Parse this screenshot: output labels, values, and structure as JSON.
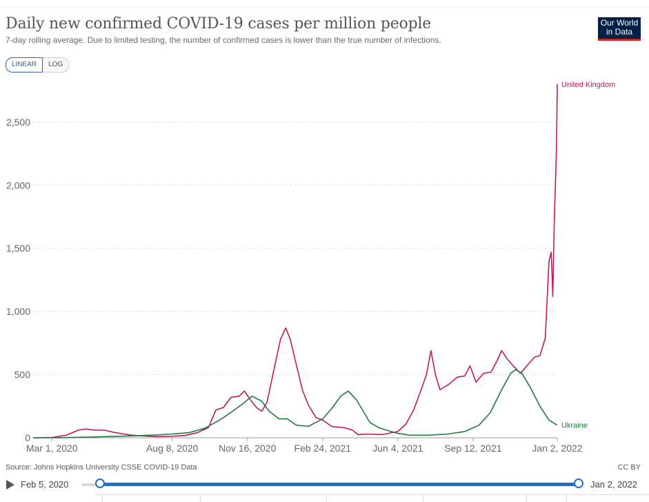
{
  "title": "Daily new confirmed COVID-19 cases per million people",
  "subtitle": "7-day rolling average. Due to limited testing, the number of confirmed cases is lower than the true number of infections.",
  "logo": {
    "line1": "Our World",
    "line2": "in Data"
  },
  "scale_toggle": {
    "linear": "LINEAR",
    "log": "LOG",
    "selected": "LINEAR"
  },
  "source": "Source: Johns Hopkins University CSSE COVID-19 Data",
  "license": "CC BY",
  "timeline": {
    "start": "Feb 5, 2020",
    "end": "Jan 2, 2022"
  },
  "chart_data": {
    "type": "line",
    "title": "Daily new confirmed COVID-19 cases per million people",
    "xlabel": "",
    "ylabel": "",
    "x_range": [
      "2020-02-05",
      "2022-01-02"
    ],
    "ylim": [
      0,
      2800
    ],
    "y_ticks": [
      0,
      500,
      1000,
      1500,
      2000,
      2500
    ],
    "y_tick_labels": [
      "0",
      "500",
      "1,000",
      "1,500",
      "2,000",
      "2,500"
    ],
    "x_ticks": [
      "2020-03-01",
      "2020-08-08",
      "2020-11-16",
      "2021-02-24",
      "2021-06-04",
      "2021-09-12",
      "2022-01-02"
    ],
    "x_tick_labels": [
      "Mar 1, 2020",
      "Aug 8, 2020",
      "Nov 16, 2020",
      "Feb 24, 2021",
      "Jun 4, 2021",
      "Sep 12, 2021",
      "Jan 2, 2022"
    ],
    "grid": "horizontal dashed",
    "legend": "inline labels at line ends",
    "series": [
      {
        "name": "United Kingdom",
        "color": "#c2185b",
        "points": [
          [
            "2020-02-05",
            0
          ],
          [
            "2020-03-01",
            2
          ],
          [
            "2020-03-20",
            20
          ],
          [
            "2020-04-05",
            60
          ],
          [
            "2020-04-15",
            70
          ],
          [
            "2020-04-25",
            62
          ],
          [
            "2020-05-10",
            60
          ],
          [
            "2020-05-25",
            40
          ],
          [
            "2020-06-15",
            20
          ],
          [
            "2020-07-15",
            10
          ],
          [
            "2020-08-08",
            12
          ],
          [
            "2020-08-25",
            18
          ],
          [
            "2020-09-10",
            40
          ],
          [
            "2020-09-25",
            80
          ],
          [
            "2020-10-05",
            220
          ],
          [
            "2020-10-15",
            240
          ],
          [
            "2020-10-25",
            320
          ],
          [
            "2020-11-05",
            330
          ],
          [
            "2020-11-12",
            370
          ],
          [
            "2020-11-20",
            300
          ],
          [
            "2020-11-28",
            240
          ],
          [
            "2020-12-05",
            210
          ],
          [
            "2020-12-12",
            280
          ],
          [
            "2020-12-22",
            560
          ],
          [
            "2020-12-30",
            780
          ],
          [
            "2021-01-06",
            870
          ],
          [
            "2021-01-12",
            780
          ],
          [
            "2021-01-20",
            580
          ],
          [
            "2021-01-28",
            380
          ],
          [
            "2021-02-05",
            260
          ],
          [
            "2021-02-15",
            160
          ],
          [
            "2021-02-24",
            140
          ],
          [
            "2021-03-08",
            90
          ],
          [
            "2021-03-25",
            80
          ],
          [
            "2021-04-05",
            60
          ],
          [
            "2021-04-12",
            25
          ],
          [
            "2021-04-25",
            30
          ],
          [
            "2021-05-15",
            25
          ],
          [
            "2021-06-04",
            50
          ],
          [
            "2021-06-15",
            110
          ],
          [
            "2021-06-25",
            220
          ],
          [
            "2021-07-05",
            380
          ],
          [
            "2021-07-12",
            500
          ],
          [
            "2021-07-18",
            690
          ],
          [
            "2021-07-24",
            500
          ],
          [
            "2021-07-30",
            380
          ],
          [
            "2021-08-10",
            420
          ],
          [
            "2021-08-22",
            480
          ],
          [
            "2021-09-01",
            490
          ],
          [
            "2021-09-08",
            570
          ],
          [
            "2021-09-16",
            440
          ],
          [
            "2021-09-26",
            510
          ],
          [
            "2021-10-06",
            520
          ],
          [
            "2021-10-14",
            610
          ],
          [
            "2021-10-20",
            690
          ],
          [
            "2021-10-28",
            620
          ],
          [
            "2021-11-06",
            560
          ],
          [
            "2021-11-14",
            510
          ],
          [
            "2021-11-24",
            580
          ],
          [
            "2021-12-03",
            640
          ],
          [
            "2021-12-10",
            650
          ],
          [
            "2021-12-17",
            790
          ],
          [
            "2021-12-22",
            1400
          ],
          [
            "2021-12-25",
            1470
          ],
          [
            "2021-12-27",
            1120
          ],
          [
            "2021-12-29",
            1700
          ],
          [
            "2022-01-01",
            2300
          ],
          [
            "2022-01-02",
            2800
          ]
        ]
      },
      {
        "name": "Ukraine",
        "color": "#1b7a3c",
        "points": [
          [
            "2020-02-05",
            0
          ],
          [
            "2020-03-15",
            1
          ],
          [
            "2020-04-15",
            5
          ],
          [
            "2020-05-15",
            10
          ],
          [
            "2020-06-15",
            15
          ],
          [
            "2020-07-15",
            22
          ],
          [
            "2020-08-08",
            30
          ],
          [
            "2020-08-30",
            40
          ],
          [
            "2020-09-20",
            75
          ],
          [
            "2020-10-10",
            140
          ],
          [
            "2020-10-25",
            200
          ],
          [
            "2020-11-10",
            270
          ],
          [
            "2020-11-22",
            330
          ],
          [
            "2020-12-05",
            290
          ],
          [
            "2020-12-15",
            210
          ],
          [
            "2020-12-28",
            150
          ],
          [
            "2021-01-08",
            150
          ],
          [
            "2021-01-20",
            100
          ],
          [
            "2021-02-05",
            90
          ],
          [
            "2021-02-24",
            150
          ],
          [
            "2021-03-08",
            230
          ],
          [
            "2021-03-20",
            330
          ],
          [
            "2021-03-30",
            370
          ],
          [
            "2021-04-10",
            300
          ],
          [
            "2021-04-20",
            200
          ],
          [
            "2021-04-28",
            120
          ],
          [
            "2021-05-10",
            80
          ],
          [
            "2021-05-20",
            60
          ],
          [
            "2021-06-04",
            35
          ],
          [
            "2021-06-20",
            20
          ],
          [
            "2021-07-15",
            20
          ],
          [
            "2021-08-10",
            30
          ],
          [
            "2021-09-01",
            50
          ],
          [
            "2021-09-20",
            100
          ],
          [
            "2021-10-05",
            200
          ],
          [
            "2021-10-20",
            380
          ],
          [
            "2021-11-01",
            510
          ],
          [
            "2021-11-08",
            540
          ],
          [
            "2021-11-16",
            510
          ],
          [
            "2021-11-28",
            390
          ],
          [
            "2021-12-10",
            250
          ],
          [
            "2021-12-22",
            140
          ],
          [
            "2022-01-02",
            100
          ]
        ]
      }
    ]
  }
}
